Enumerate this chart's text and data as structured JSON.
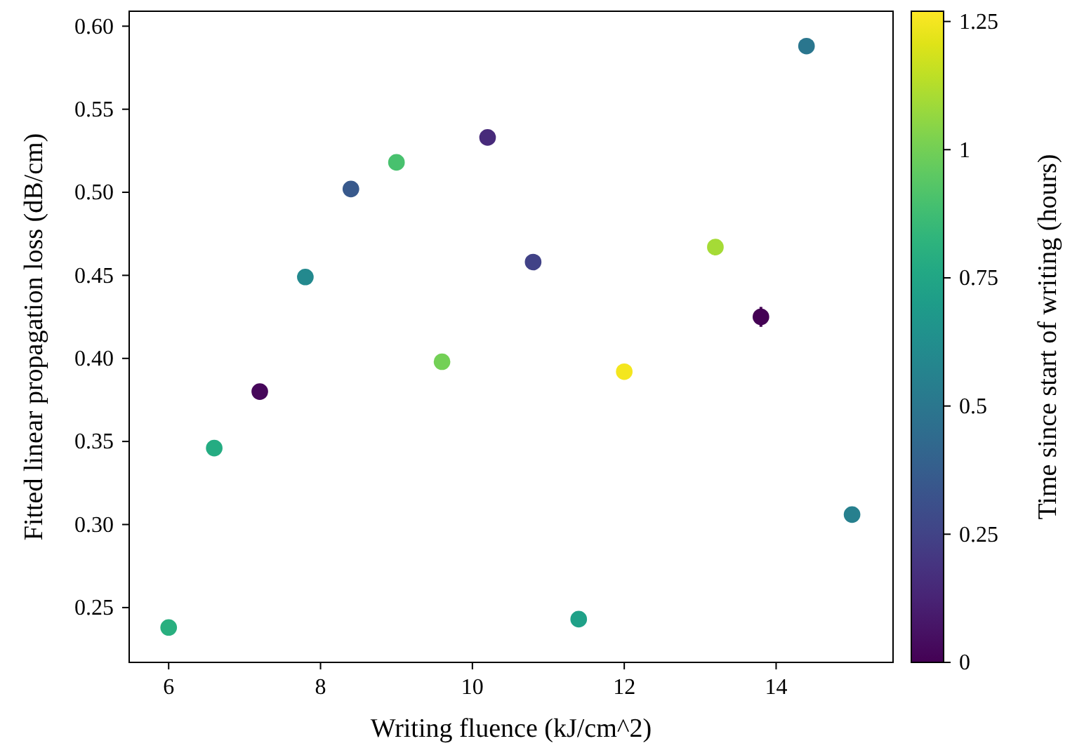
{
  "chart_data": {
    "type": "scatter",
    "xlabel": "Writing fluence (kJ/cm^2)",
    "ylabel": "Fitted linear propagation loss (dB/cm)",
    "clabel": "Time since start of writing (hours)",
    "x": [
      6.0,
      6.6,
      7.2,
      7.8,
      8.4,
      9.0,
      9.6,
      10.2,
      10.8,
      11.4,
      12.0,
      13.2,
      13.8,
      14.4,
      15.0
    ],
    "values": [
      0.238,
      0.346,
      0.38,
      0.449,
      0.502,
      0.518,
      0.398,
      0.533,
      0.458,
      0.243,
      0.392,
      0.467,
      0.425,
      0.588,
      0.306
    ],
    "cvalues": [
      0.8,
      0.78,
      0.02,
      0.6,
      0.35,
      0.9,
      1.0,
      0.15,
      0.25,
      0.72,
      1.25,
      1.1,
      0.0,
      0.5,
      0.55
    ],
    "errors": [
      null,
      null,
      null,
      null,
      null,
      null,
      null,
      null,
      null,
      null,
      null,
      null,
      0.006,
      null,
      null
    ],
    "xlim": [
      5.48,
      15.54
    ],
    "xticks": [
      6,
      8,
      10,
      12,
      14
    ],
    "ylim": [
      0.217,
      0.609
    ],
    "yticks": [
      {
        "value": 0.25,
        "label": "0.25"
      },
      {
        "value": 0.3,
        "label": "0.30"
      },
      {
        "value": 0.35,
        "label": "0.35"
      },
      {
        "value": 0.4,
        "label": "0.40"
      },
      {
        "value": 0.45,
        "label": "0.45"
      },
      {
        "value": 0.5,
        "label": "0.50"
      },
      {
        "value": 0.55,
        "label": "0.55"
      },
      {
        "value": 0.6,
        "label": "0.60"
      }
    ],
    "clim": [
      0,
      1.27
    ],
    "cticks": [
      0,
      0.25,
      0.5,
      0.75,
      1,
      1.25
    ],
    "grid": false,
    "marker": "circle"
  }
}
